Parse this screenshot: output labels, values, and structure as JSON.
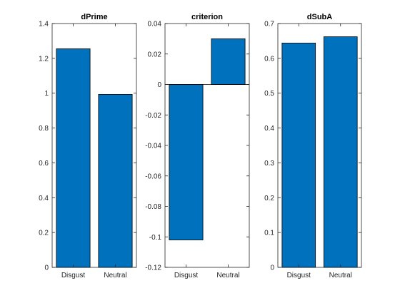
{
  "figure": {
    "background_color": "#ffffff",
    "axes_color": "#262626",
    "bar_color": "#0072BD",
    "bar_edge_color": "#000000"
  },
  "chart_data": [
    {
      "type": "bar",
      "title": "dPrime",
      "categories": [
        "Disgust",
        "Neutral"
      ],
      "values": [
        1.255,
        0.993
      ],
      "ylim": [
        0,
        1.4
      ],
      "yticks": [
        0,
        0.2,
        0.4,
        0.6,
        0.8,
        1,
        1.2,
        1.4
      ],
      "ytick_labels": [
        "0",
        "0.2",
        "0.4",
        "0.6",
        "0.8",
        "1",
        "1.2",
        "1.4"
      ],
      "xlabel": "",
      "ylabel": "",
      "grid": false,
      "legend": "none"
    },
    {
      "type": "bar",
      "title": "criterion",
      "categories": [
        "Disgust",
        "Neutral"
      ],
      "values": [
        -0.102,
        0.03
      ],
      "ylim": [
        -0.12,
        0.04
      ],
      "yticks": [
        -0.12,
        -0.1,
        -0.08,
        -0.06,
        -0.04,
        -0.02,
        0,
        0.02,
        0.04
      ],
      "ytick_labels": [
        "-0.12",
        "-0.1",
        "-0.08",
        "-0.06",
        "-0.04",
        "-0.02",
        "0",
        "0.02",
        "0.04"
      ],
      "xlabel": "",
      "ylabel": "",
      "grid": false,
      "legend": "none"
    },
    {
      "type": "bar",
      "title": "dSubA",
      "categories": [
        "Disgust",
        "Neutral"
      ],
      "values": [
        0.644,
        0.662
      ],
      "ylim": [
        0,
        0.7
      ],
      "yticks": [
        0,
        0.1,
        0.2,
        0.3,
        0.4,
        0.5,
        0.6,
        0.7
      ],
      "ytick_labels": [
        "0",
        "0.1",
        "0.2",
        "0.3",
        "0.4",
        "0.5",
        "0.6",
        "0.7"
      ],
      "xlabel": "",
      "ylabel": "",
      "grid": false,
      "legend": "none"
    }
  ]
}
